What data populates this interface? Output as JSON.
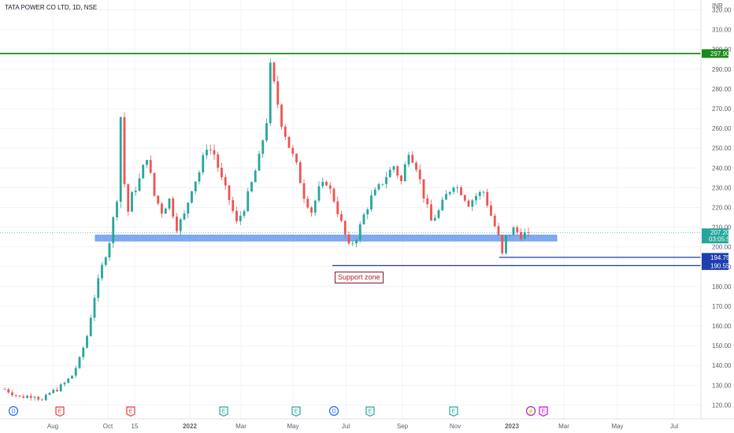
{
  "header": {
    "title": "TATA POWER CO LTD, 1D, NSE"
  },
  "chart_data": {
    "type": "candlestick",
    "title": "TATA POWER CO LTD, 1D, NSE",
    "currency": "INR",
    "ylim": [
      113,
      325
    ],
    "y_ticks": [
      120,
      130,
      140,
      150,
      160,
      170,
      180,
      190,
      200,
      210,
      220,
      230,
      240,
      250,
      260,
      270,
      280,
      290,
      300,
      310,
      320
    ],
    "x_ticks": [
      "Aug",
      "Oct",
      "15",
      "2022",
      "Mar",
      "May",
      "Jul",
      "Sep",
      "Nov",
      "2023",
      "Mar",
      "May",
      "Jul"
    ],
    "price_path": [
      [
        0,
        128
      ],
      [
        4,
        124
      ],
      [
        8,
        125
      ],
      [
        10,
        122
      ],
      [
        12,
        126
      ],
      [
        14,
        128
      ],
      [
        16,
        131
      ],
      [
        18,
        135
      ],
      [
        20,
        143
      ],
      [
        22,
        155
      ],
      [
        24,
        175
      ],
      [
        26,
        190
      ],
      [
        28,
        203
      ],
      [
        30,
        225
      ],
      [
        31,
        266
      ],
      [
        32,
        232
      ],
      [
        33,
        218
      ],
      [
        34,
        226
      ],
      [
        36,
        234
      ],
      [
        38,
        246
      ],
      [
        40,
        226
      ],
      [
        42,
        218
      ],
      [
        44,
        224
      ],
      [
        46,
        210
      ],
      [
        48,
        216
      ],
      [
        50,
        230
      ],
      [
        52,
        238
      ],
      [
        54,
        251
      ],
      [
        56,
        247
      ],
      [
        58,
        234
      ],
      [
        60,
        224
      ],
      [
        62,
        212
      ],
      [
        64,
        220
      ],
      [
        66,
        232
      ],
      [
        68,
        245
      ],
      [
        70,
        264
      ],
      [
        71,
        291
      ],
      [
        72,
        282
      ],
      [
        74,
        263
      ],
      [
        76,
        251
      ],
      [
        78,
        241
      ],
      [
        80,
        226
      ],
      [
        82,
        218
      ],
      [
        84,
        229
      ],
      [
        86,
        233
      ],
      [
        88,
        224
      ],
      [
        90,
        212
      ],
      [
        92,
        200
      ],
      [
        94,
        205
      ],
      [
        96,
        216
      ],
      [
        98,
        225
      ],
      [
        100,
        230
      ],
      [
        102,
        236
      ],
      [
        104,
        241
      ],
      [
        106,
        233
      ],
      [
        108,
        249
      ],
      [
        110,
        241
      ],
      [
        112,
        226
      ],
      [
        114,
        213
      ],
      [
        116,
        218
      ],
      [
        118,
        226
      ],
      [
        120,
        232
      ],
      [
        122,
        228
      ],
      [
        124,
        222
      ],
      [
        126,
        226
      ],
      [
        128,
        228
      ],
      [
        130,
        216
      ],
      [
        132,
        205
      ],
      [
        133,
        196
      ],
      [
        134,
        205
      ],
      [
        136,
        209
      ],
      [
        138,
        206
      ],
      [
        140,
        207.2
      ]
    ],
    "last_price": {
      "value": "207.20",
      "countdown": "03:05:53"
    },
    "support_zone": {
      "low": 203,
      "high": 206,
      "from_index": 25,
      "to_index": 146,
      "label": "Support zone"
    },
    "horizontal_levels": [
      {
        "value": 297.9,
        "label": "297.90",
        "color": "#1b8a1b"
      },
      {
        "value": 194.75,
        "label": "194.75",
        "color": "#1e3fae",
        "from_index": 131
      },
      {
        "value": 190.55,
        "label": "190.55",
        "color": "#1e3fae",
        "from_index": 87
      }
    ],
    "events": [
      {
        "symbol": "D",
        "x_index": 3,
        "color": "#2962ff",
        "shape": "circle"
      },
      {
        "symbol": "E",
        "x_index": 16,
        "color": "#e53935",
        "shape": "tag"
      },
      {
        "symbol": "E",
        "x_index": 34,
        "color": "#e53935",
        "shape": "tag"
      },
      {
        "symbol": "E",
        "x_index": 59,
        "color": "#26a69a",
        "shape": "tag"
      },
      {
        "symbol": "E",
        "x_index": 78,
        "color": "#26a69a",
        "shape": "tag"
      },
      {
        "symbol": "D",
        "x_index": 88,
        "color": "#2962ff",
        "shape": "circle"
      },
      {
        "symbol": "E",
        "x_index": 98,
        "color": "#26a69a",
        "shape": "tag"
      },
      {
        "symbol": "E",
        "x_index": 120,
        "color": "#26a69a",
        "shape": "tag"
      },
      {
        "symbol": "⚡",
        "x_index": 141,
        "color": "#9c27b0",
        "shape": "circle"
      },
      {
        "symbol": "E",
        "x_index": 145,
        "color": "#d500f9",
        "shape": "tag"
      }
    ],
    "colors": {
      "up": "#26a69a",
      "down": "#ef5350",
      "zone": "#6a9cf0",
      "grid": "#f0f3fa",
      "last_price": "#26a69a"
    }
  }
}
